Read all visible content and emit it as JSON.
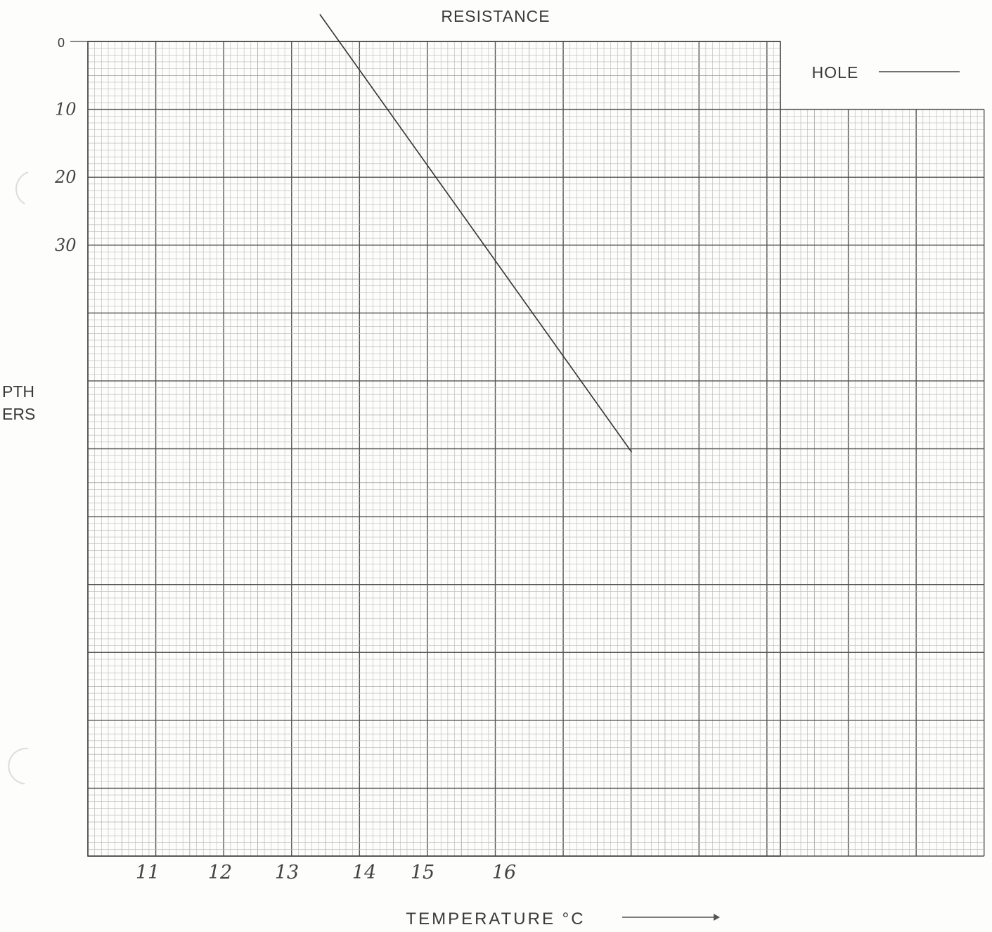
{
  "chart_data": {
    "type": "line",
    "top_label": "RESISTANCE",
    "right_label": "HOLE",
    "xlabel": "TEMPERATURE °C",
    "ylabel_fragment": [
      "PTH",
      "ERS"
    ],
    "y_ticks": [
      {
        "value": 0,
        "label": "0"
      },
      {
        "value": 10,
        "label": "10"
      },
      {
        "value": 20,
        "label": "20"
      },
      {
        "value": 30,
        "label": "30"
      }
    ],
    "x_ticks": [
      {
        "value": 11,
        "label": "11"
      },
      {
        "value": 12,
        "label": "12"
      },
      {
        "value": 13,
        "label": "13"
      },
      {
        "value": 14,
        "label": "14"
      },
      {
        "value": 15,
        "label": "15"
      },
      {
        "value": 16,
        "label": "16"
      }
    ],
    "xlim": [
      10.1,
      20.25
    ],
    "ylim": [
      0,
      120
    ],
    "grid": true,
    "series": [
      {
        "points": [
          [
            13.5,
            -4
          ],
          [
            18.07,
            60.5
          ]
        ]
      }
    ]
  }
}
